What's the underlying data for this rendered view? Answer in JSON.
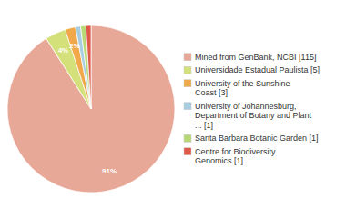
{
  "chart_data": {
    "type": "pie",
    "categories": [
      "Mined from GenBank, NCBI [115]",
      "Universidade Estadual Paulista [5]",
      "University of the Sunshine\nCoast [3]",
      "University of Johannesburg,\nDepartment of Botany and Plant\n... [1]",
      "Santa Barbara Botanic Garden [1]",
      "Centre for Biodiversity\nGenomics [1]"
    ],
    "values": [
      91,
      4,
      2,
      1,
      1,
      1
    ],
    "value_labels": [
      "91%",
      "4%",
      "2%",
      null,
      null,
      null
    ],
    "colors": [
      "#e8a898",
      "#d4e07a",
      "#f0a84a",
      "#a8cce0",
      "#b8d878",
      "#e05848"
    ],
    "data_labels": true,
    "legend": "right"
  }
}
